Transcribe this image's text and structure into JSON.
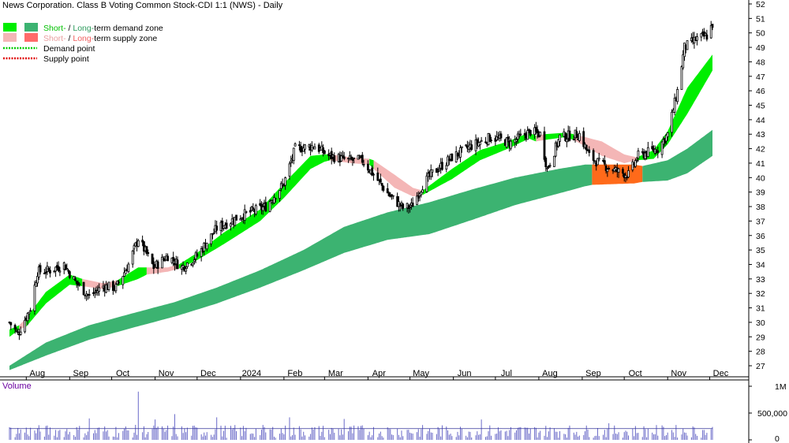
{
  "title": "News Corporation. Class B Voting Common Stock-CDI 1:1 (NWS) - Daily",
  "legend": {
    "demand_zone_prefix": "Short-",
    "demand_zone_sep": " / ",
    "demand_zone_mid": "Long-",
    "demand_zone_suffix": "term demand zone",
    "supply_zone_prefix": "Short-",
    "supply_zone_sep": " / ",
    "supply_zone_mid": "Long-",
    "supply_zone_suffix": "term supply zone",
    "demand_point": "Demand point",
    "supply_point": "Supply point"
  },
  "volume_label": "Volume",
  "colors": {
    "short_demand": "#00ee00",
    "long_demand": "#3cb371",
    "short_supply": "#f4b6b6",
    "long_supply": "#ff6a1a",
    "demand_point": "#00cc00",
    "supply_point": "#e00000",
    "candle": "#000000",
    "volume_bar": "#6a6ac8",
    "volume_avg": "#333399",
    "title_text": "#000000",
    "volume_label": "#6a00a0"
  },
  "chart_data": [
    {
      "type": "candlestick",
      "title": "News Corporation. Class B Voting Common Stock-CDI 1:1 (NWS) - Daily",
      "ylim": [
        26.3,
        52.3
      ],
      "y_ticks": [
        27,
        28,
        29,
        30,
        31,
        32,
        33,
        34,
        35,
        36,
        37,
        38,
        39,
        40,
        41,
        42,
        43,
        44,
        45,
        46,
        47,
        48,
        49,
        50,
        51,
        52
      ],
      "x_tick_labels": [
        "Aug",
        "Sep",
        "Oct",
        "Nov",
        "Dec",
        "2024",
        "Feb",
        "Mar",
        "Apr",
        "May",
        "Jun",
        "Jul",
        "Aug",
        "Sep",
        "Oct",
        "Nov",
        "Dec"
      ],
      "x_tick_dates": [
        "2023-08-01",
        "2023-09-01",
        "2023-10-01",
        "2023-11-01",
        "2023-12-01",
        "2024-01-01",
        "2024-02-01",
        "2024-03-01",
        "2024-04-01",
        "2024-05-01",
        "2024-06-01",
        "2024-07-01",
        "2024-08-01",
        "2024-09-01",
        "2024-10-01",
        "2024-11-01",
        "2024-12-01"
      ],
      "price_keypoints": [
        {
          "date": "2023-07-20",
          "close": 30.0
        },
        {
          "date": "2023-07-26",
          "close": 29.2
        },
        {
          "date": "2023-08-04",
          "close": 31.0
        },
        {
          "date": "2023-08-09",
          "close": 33.5
        },
        {
          "date": "2023-08-18",
          "close": 33.6
        },
        {
          "date": "2023-08-28",
          "close": 34.0
        },
        {
          "date": "2023-09-05",
          "close": 32.8
        },
        {
          "date": "2023-09-15",
          "close": 31.8
        },
        {
          "date": "2023-09-25",
          "close": 32.5
        },
        {
          "date": "2023-10-04",
          "close": 32.4
        },
        {
          "date": "2023-10-13",
          "close": 34.0
        },
        {
          "date": "2023-10-20",
          "close": 35.8
        },
        {
          "date": "2023-10-31",
          "close": 33.8
        },
        {
          "date": "2023-11-10",
          "close": 34.6
        },
        {
          "date": "2023-11-20",
          "close": 33.8
        },
        {
          "date": "2023-12-01",
          "close": 34.6
        },
        {
          "date": "2023-12-15",
          "close": 36.5
        },
        {
          "date": "2024-01-02",
          "close": 37.4
        },
        {
          "date": "2024-01-19",
          "close": 38.0
        },
        {
          "date": "2024-02-01",
          "close": 39.6
        },
        {
          "date": "2024-02-09",
          "close": 42.0
        },
        {
          "date": "2024-02-23",
          "close": 42.2
        },
        {
          "date": "2024-03-04",
          "close": 41.5
        },
        {
          "date": "2024-03-18",
          "close": 41.2
        },
        {
          "date": "2024-03-28",
          "close": 41.2
        },
        {
          "date": "2024-04-05",
          "close": 40.2
        },
        {
          "date": "2024-04-16",
          "close": 38.8
        },
        {
          "date": "2024-04-26",
          "close": 37.9
        },
        {
          "date": "2024-05-02",
          "close": 38.0
        },
        {
          "date": "2024-05-10",
          "close": 39.5
        },
        {
          "date": "2024-05-17",
          "close": 40.3
        },
        {
          "date": "2024-05-31",
          "close": 41.4
        },
        {
          "date": "2024-06-14",
          "close": 42.2
        },
        {
          "date": "2024-06-28",
          "close": 42.8
        },
        {
          "date": "2024-07-12",
          "close": 42.4
        },
        {
          "date": "2024-07-26",
          "close": 43.2
        },
        {
          "date": "2024-08-02",
          "close": 43.0
        },
        {
          "date": "2024-08-07",
          "close": 40.6
        },
        {
          "date": "2024-08-16",
          "close": 42.8
        },
        {
          "date": "2024-08-30",
          "close": 43.0
        },
        {
          "date": "2024-09-06",
          "close": 41.5
        },
        {
          "date": "2024-09-13",
          "close": 41.0
        },
        {
          "date": "2024-09-27",
          "close": 40.4
        },
        {
          "date": "2024-10-04",
          "close": 40.2
        },
        {
          "date": "2024-10-11",
          "close": 41.5
        },
        {
          "date": "2024-10-25",
          "close": 42.0
        },
        {
          "date": "2024-11-01",
          "close": 43.0
        },
        {
          "date": "2024-11-08",
          "close": 46.0
        },
        {
          "date": "2024-11-13",
          "close": 49.0
        },
        {
          "date": "2024-11-22",
          "close": 49.6
        },
        {
          "date": "2024-11-29",
          "close": 49.8
        },
        {
          "date": "2024-12-03",
          "close": 50.6
        }
      ],
      "short_term_zone": [
        {
          "date": "2023-07-20",
          "lower": 29.0,
          "upper": 29.5,
          "state": "demand"
        },
        {
          "date": "2023-07-27",
          "lower": 29.5,
          "upper": 29.8,
          "state": "supply"
        },
        {
          "date": "2023-08-01",
          "lower": 29.7,
          "upper": 30.3,
          "state": "demand"
        },
        {
          "date": "2023-08-15",
          "lower": 31.3,
          "upper": 32.1,
          "state": "demand"
        },
        {
          "date": "2023-09-01",
          "lower": 32.6,
          "upper": 33.3,
          "state": "demand"
        },
        {
          "date": "2023-09-10",
          "lower": 32.5,
          "upper": 33.0,
          "state": "supply"
        },
        {
          "date": "2023-09-25",
          "lower": 32.3,
          "upper": 32.7,
          "state": "supply"
        },
        {
          "date": "2023-10-05",
          "lower": 32.5,
          "upper": 32.9,
          "state": "demand"
        },
        {
          "date": "2023-10-20",
          "lower": 33.0,
          "upper": 33.8,
          "state": "demand"
        },
        {
          "date": "2023-10-26",
          "lower": 33.3,
          "upper": 33.8,
          "state": "supply"
        },
        {
          "date": "2023-11-10",
          "lower": 33.5,
          "upper": 33.8,
          "state": "supply"
        },
        {
          "date": "2023-11-18",
          "lower": 33.7,
          "upper": 34.0,
          "state": "demand"
        },
        {
          "date": "2023-12-01",
          "lower": 34.3,
          "upper": 34.8,
          "state": "demand"
        },
        {
          "date": "2023-12-20",
          "lower": 35.4,
          "upper": 36.2,
          "state": "demand"
        },
        {
          "date": "2024-01-15",
          "lower": 37.0,
          "upper": 37.8,
          "state": "demand"
        },
        {
          "date": "2024-02-01",
          "lower": 38.6,
          "upper": 39.6,
          "state": "demand"
        },
        {
          "date": "2024-02-20",
          "lower": 40.6,
          "upper": 41.5,
          "state": "demand"
        },
        {
          "date": "2024-03-01",
          "lower": 41.1,
          "upper": 41.6,
          "state": "demand"
        },
        {
          "date": "2024-03-05",
          "lower": 41.2,
          "upper": 41.6,
          "state": "supply"
        },
        {
          "date": "2024-03-20",
          "lower": 41.0,
          "upper": 41.4,
          "state": "supply"
        },
        {
          "date": "2024-04-02",
          "lower": 40.9,
          "upper": 41.3,
          "state": "demand"
        },
        {
          "date": "2024-04-05",
          "lower": 40.6,
          "upper": 41.2,
          "state": "supply"
        },
        {
          "date": "2024-04-20",
          "lower": 39.3,
          "upper": 40.2,
          "state": "supply"
        },
        {
          "date": "2024-05-03",
          "lower": 38.7,
          "upper": 39.3,
          "state": "supply"
        },
        {
          "date": "2024-05-10",
          "lower": 38.8,
          "upper": 39.1,
          "state": "demand"
        },
        {
          "date": "2024-05-31",
          "lower": 39.9,
          "upper": 40.6,
          "state": "demand"
        },
        {
          "date": "2024-06-20",
          "lower": 41.2,
          "upper": 41.9,
          "state": "demand"
        },
        {
          "date": "2024-07-10",
          "lower": 42.0,
          "upper": 42.5,
          "state": "demand"
        },
        {
          "date": "2024-07-25",
          "lower": 42.7,
          "upper": 43.1,
          "state": "demand"
        },
        {
          "date": "2024-07-30",
          "lower": 42.5,
          "upper": 42.9,
          "state": "supply"
        },
        {
          "date": "2024-08-05",
          "lower": 42.6,
          "upper": 43.0,
          "state": "demand"
        },
        {
          "date": "2024-08-20",
          "lower": 42.8,
          "upper": 43.1,
          "state": "demand"
        },
        {
          "date": "2024-08-26",
          "lower": 42.6,
          "upper": 43.0,
          "state": "supply"
        },
        {
          "date": "2024-09-15",
          "lower": 41.5,
          "upper": 42.5,
          "state": "supply"
        },
        {
          "date": "2024-10-01",
          "lower": 41.0,
          "upper": 41.6,
          "state": "supply"
        },
        {
          "date": "2024-10-10",
          "lower": 41.2,
          "upper": 41.4,
          "state": "demand"
        },
        {
          "date": "2024-10-22",
          "lower": 41.3,
          "upper": 41.9,
          "state": "demand"
        },
        {
          "date": "2024-11-01",
          "lower": 42.3,
          "upper": 43.2,
          "state": "demand"
        },
        {
          "date": "2024-11-15",
          "lower": 44.4,
          "upper": 46.2,
          "state": "demand"
        },
        {
          "date": "2024-12-03",
          "lower": 47.4,
          "upper": 48.5,
          "state": "demand"
        }
      ],
      "long_term_zone": [
        {
          "date": "2023-07-20",
          "lower": 26.7,
          "upper": 27.0,
          "state": "demand"
        },
        {
          "date": "2023-08-15",
          "lower": 27.7,
          "upper": 28.6,
          "state": "demand"
        },
        {
          "date": "2023-09-15",
          "lower": 28.8,
          "upper": 29.8,
          "state": "demand"
        },
        {
          "date": "2023-10-15",
          "lower": 29.6,
          "upper": 30.6,
          "state": "demand"
        },
        {
          "date": "2023-11-15",
          "lower": 30.4,
          "upper": 31.4,
          "state": "demand"
        },
        {
          "date": "2023-12-15",
          "lower": 31.3,
          "upper": 32.4,
          "state": "demand"
        },
        {
          "date": "2024-01-15",
          "lower": 32.4,
          "upper": 33.6,
          "state": "demand"
        },
        {
          "date": "2024-02-15",
          "lower": 33.6,
          "upper": 35.0,
          "state": "demand"
        },
        {
          "date": "2024-03-15",
          "lower": 34.8,
          "upper": 36.6,
          "state": "demand"
        },
        {
          "date": "2024-04-15",
          "lower": 35.7,
          "upper": 37.6,
          "state": "demand"
        },
        {
          "date": "2024-05-15",
          "lower": 36.1,
          "upper": 38.3,
          "state": "demand"
        },
        {
          "date": "2024-06-15",
          "lower": 37.1,
          "upper": 39.2,
          "state": "demand"
        },
        {
          "date": "2024-07-15",
          "lower": 38.1,
          "upper": 40.0,
          "state": "demand"
        },
        {
          "date": "2024-08-15",
          "lower": 38.9,
          "upper": 40.6,
          "state": "demand"
        },
        {
          "date": "2024-09-03",
          "lower": 39.4,
          "upper": 40.9,
          "state": "demand"
        },
        {
          "date": "2024-09-08",
          "lower": 39.5,
          "upper": 40.9,
          "state": "supply"
        },
        {
          "date": "2024-10-08",
          "lower": 39.6,
          "upper": 40.9,
          "state": "supply"
        },
        {
          "date": "2024-10-14",
          "lower": 39.7,
          "upper": 40.8,
          "state": "demand"
        },
        {
          "date": "2024-11-01",
          "lower": 39.8,
          "upper": 41.2,
          "state": "demand"
        },
        {
          "date": "2024-11-15",
          "lower": 40.3,
          "upper": 42.0,
          "state": "demand"
        },
        {
          "date": "2024-12-03",
          "lower": 41.5,
          "upper": 43.3,
          "state": "demand"
        }
      ],
      "volume": {
        "y_tick_labels": [
          "1M",
          "500,000",
          "0"
        ],
        "y_tick_values": [
          1000000,
          500000,
          0
        ],
        "ylim": [
          0,
          1000000
        ],
        "average_level": 210000,
        "spikes": [
          {
            "date": "2023-09-15",
            "value": 400000
          },
          {
            "date": "2023-10-20",
            "value": 900000
          },
          {
            "date": "2023-11-01",
            "value": 380000
          },
          {
            "date": "2023-11-15",
            "value": 480000
          },
          {
            "date": "2023-12-15",
            "value": 420000
          },
          {
            "date": "2024-02-05",
            "value": 420000
          },
          {
            "date": "2024-03-15",
            "value": 390000
          },
          {
            "date": "2024-06-21",
            "value": 380000
          },
          {
            "date": "2024-09-20",
            "value": 310000
          }
        ]
      }
    }
  ]
}
